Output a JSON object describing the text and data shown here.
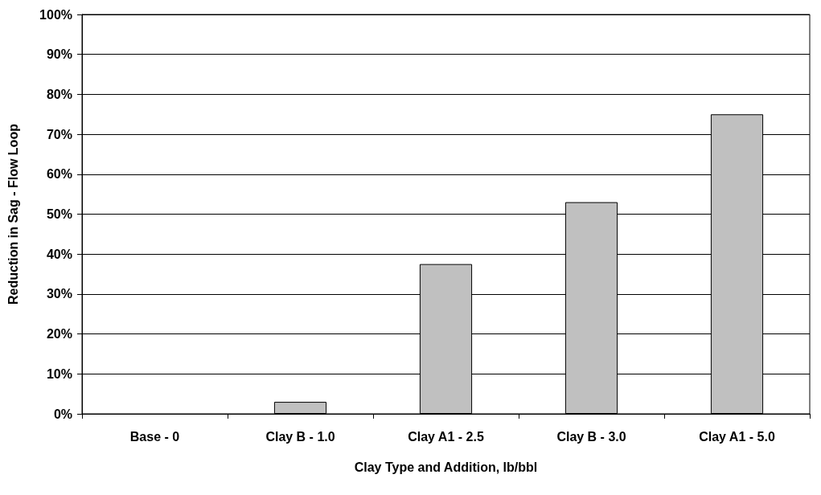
{
  "chart_data": {
    "type": "bar",
    "xlabel": "Clay Type and Addition, lb/bbl",
    "ylabel": "Reduction in Sag - Flow Loop",
    "categories": [
      "Base - 0",
      "Clay B - 1.0",
      "Clay A1 - 2.5",
      "Clay B - 3.0",
      "Clay A1 - 5.0"
    ],
    "values": [
      0,
      3,
      37.5,
      53,
      75
    ],
    "color": "#c0c0c0",
    "ylim": [
      0,
      100
    ],
    "yticks": [
      {
        "value": 0,
        "label": "0%"
      },
      {
        "value": 10,
        "label": "10%"
      },
      {
        "value": 20,
        "label": "20%"
      },
      {
        "value": 30,
        "label": "30%"
      },
      {
        "value": 40,
        "label": "40%"
      },
      {
        "value": 50,
        "label": "50%"
      },
      {
        "value": 60,
        "label": "60%"
      },
      {
        "value": 70,
        "label": "70%"
      },
      {
        "value": 80,
        "label": "80%"
      },
      {
        "value": 90,
        "label": "90%"
      },
      {
        "value": 100,
        "label": "100%"
      }
    ],
    "grid": "y"
  }
}
